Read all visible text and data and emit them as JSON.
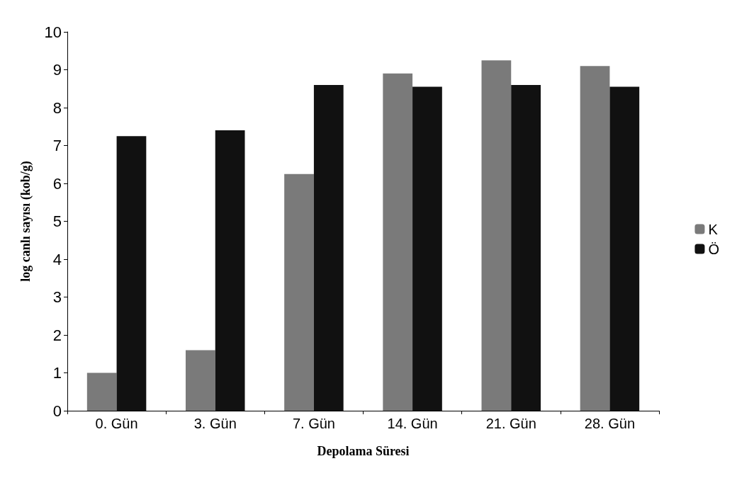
{
  "chart_data": {
    "type": "bar",
    "xlabel": "Depolama Süresi",
    "ylabel": "log canlı sayısı (kob/g)",
    "categories": [
      "0. Gün",
      "3. Gün",
      "7. Gün",
      "14. Gün",
      "21. Gün",
      "28. Gün"
    ],
    "series": [
      {
        "name": "K",
        "color": "#7a7a7a",
        "values": [
          1.0,
          1.6,
          6.25,
          8.9,
          9.25,
          9.1
        ]
      },
      {
        "name": "Ö",
        "color": "#111111",
        "values": [
          7.25,
          7.4,
          8.6,
          8.55,
          8.6,
          8.55
        ]
      }
    ],
    "ylim": [
      0,
      10
    ],
    "yticks": [
      0,
      1,
      2,
      3,
      4,
      5,
      6,
      7,
      8,
      9,
      10
    ],
    "grid": false,
    "legend": "right"
  }
}
